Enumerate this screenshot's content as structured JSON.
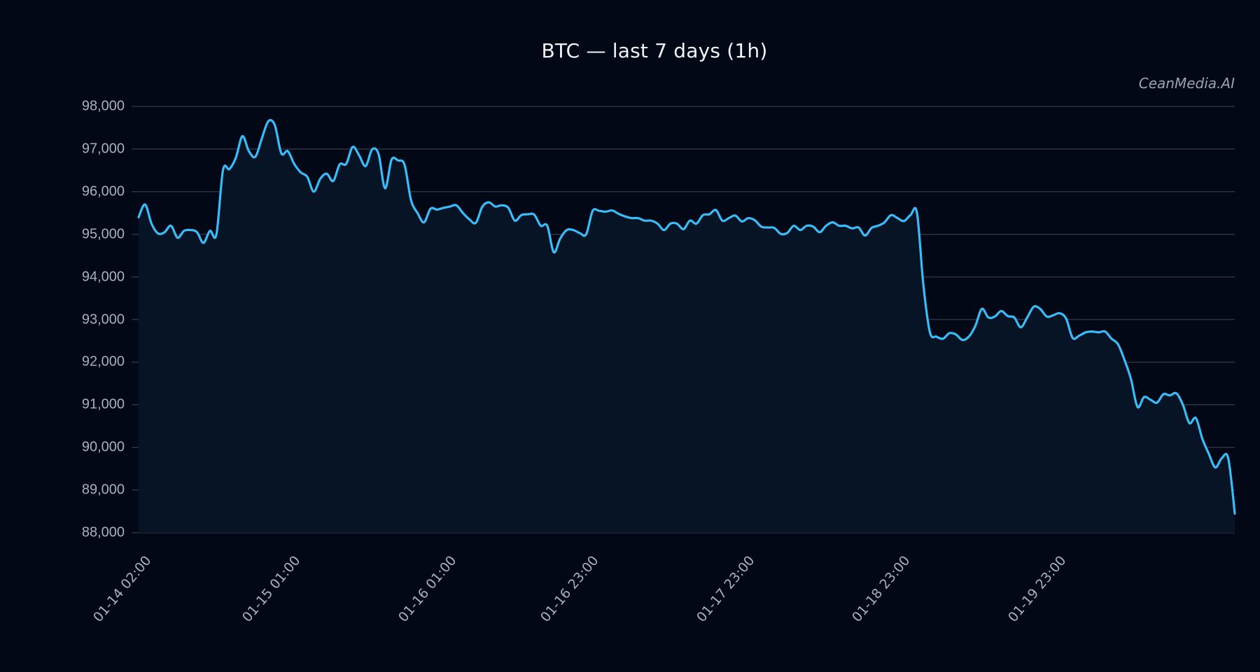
{
  "chart": {
    "title": "BTC — last 7 days (1h)",
    "watermark": "CeanMedia.AI",
    "colors": {
      "background": "#030817",
      "plot_fill": "#071426",
      "line": "#38bdf8",
      "grid": "#2a3446",
      "text": "#a8b0bf"
    }
  },
  "y_ticks": [
    "98,000",
    "97,000",
    "96,000",
    "95,000",
    "94,000",
    "93,000",
    "92,000",
    "91,000",
    "90,000",
    "89,000",
    "88,000"
  ],
  "x_ticks": [
    "01-14 02:00",
    "01-15 01:00",
    "01-16 01:00",
    "01-16 23:00",
    "01-17 23:00",
    "01-18 23:00",
    "01-19 23:00"
  ],
  "chart_data": {
    "type": "area",
    "title": "BTC — last 7 days (1h)",
    "xlabel": "",
    "ylabel": "",
    "ylim": [
      88000,
      98000
    ],
    "grid": true,
    "legend": null,
    "annotations": [
      "CeanMedia.AI"
    ],
    "x_tick_labels": [
      "01-14 02:00",
      "01-15 01:00",
      "01-16 01:00",
      "01-16 23:00",
      "01-17 23:00",
      "01-18 23:00",
      "01-19 23:00"
    ],
    "y_tick_labels": [
      "88,000",
      "89,000",
      "90,000",
      "91,000",
      "92,000",
      "93,000",
      "94,000",
      "95,000",
      "96,000",
      "97,000",
      "98,000"
    ],
    "series": [
      {
        "name": "BTC",
        "interval": "1h",
        "values": [
          95400,
          95700,
          95250,
          95020,
          95050,
          95200,
          94920,
          95080,
          95100,
          95050,
          94800,
          95080,
          95000,
          96500,
          96530,
          96800,
          97300,
          96950,
          96820,
          97250,
          97650,
          97560,
          96900,
          96950,
          96650,
          96450,
          96350,
          96000,
          96300,
          96420,
          96250,
          96640,
          96650,
          97050,
          96850,
          96600,
          96990,
          96880,
          96080,
          96750,
          96730,
          96630,
          95800,
          95500,
          95280,
          95600,
          95580,
          95620,
          95650,
          95680,
          95500,
          95350,
          95270,
          95650,
          95750,
          95650,
          95680,
          95620,
          95320,
          95450,
          95470,
          95460,
          95200,
          95200,
          94580,
          94900,
          95100,
          95100,
          95030,
          95000,
          95550,
          95550,
          95530,
          95560,
          95480,
          95420,
          95380,
          95380,
          95320,
          95320,
          95250,
          95100,
          95250,
          95250,
          95120,
          95320,
          95250,
          95450,
          95470,
          95570,
          95320,
          95380,
          95440,
          95300,
          95380,
          95330,
          95180,
          95160,
          95150,
          95010,
          95030,
          95200,
          95100,
          95200,
          95180,
          95050,
          95200,
          95280,
          95200,
          95200,
          95140,
          95160,
          94970,
          95150,
          95200,
          95280,
          95450,
          95380,
          95310,
          95450,
          95500,
          93800,
          92700,
          92600,
          92550,
          92680,
          92650,
          92520,
          92600,
          92850,
          93250,
          93050,
          93070,
          93200,
          93080,
          93050,
          92820,
          93050,
          93300,
          93250,
          93070,
          93100,
          93150,
          93020,
          92570,
          92620,
          92700,
          92720,
          92700,
          92720,
          92550,
          92420,
          92050,
          91600,
          90950,
          91180,
          91120,
          91050,
          91250,
          91220,
          91270,
          91000,
          90570,
          90690,
          90200,
          89850,
          89530,
          89750,
          89740,
          88450
        ]
      }
    ]
  }
}
